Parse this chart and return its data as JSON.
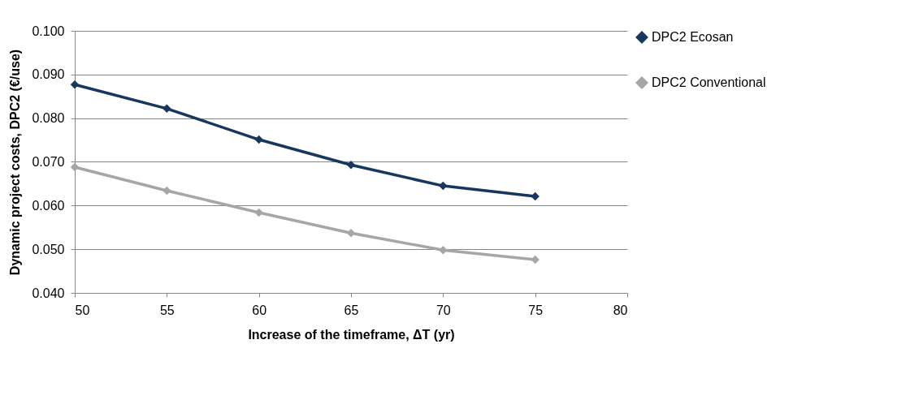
{
  "chart_data": {
    "type": "line",
    "xlabel": "Increase of the timeframe, ΔT (yr)",
    "ylabel": "Dynamic project costs,\nDPC2 (€/use)",
    "x": [
      50,
      55,
      60,
      65,
      70,
      75
    ],
    "series": [
      {
        "name": "DPC2 Ecosan",
        "color": "#17375e",
        "values": [
          0.0877,
          0.0822,
          0.0751,
          0.0693,
          0.0645,
          0.0621
        ]
      },
      {
        "name": "DPC2 Conventional",
        "color": "#a6a6a6",
        "values": [
          0.0688,
          0.0634,
          0.0584,
          0.0537,
          0.0498,
          0.0476
        ]
      }
    ],
    "xlim": [
      50,
      80
    ],
    "xticks": [
      50,
      55,
      60,
      65,
      70,
      75,
      80
    ],
    "ylim": [
      0.04,
      0.1
    ],
    "yticks": [
      {
        "value": 0.04,
        "label": "0.040"
      },
      {
        "value": 0.05,
        "label": "0.050"
      },
      {
        "value": 0.06,
        "label": "0.060"
      },
      {
        "value": 0.07,
        "label": "0.070"
      },
      {
        "value": 0.08,
        "label": "0.080"
      },
      {
        "value": 0.09,
        "label": "0.090"
      },
      {
        "value": 0.1,
        "label": "0.100"
      }
    ],
    "grid": "y",
    "legend": "right",
    "marker": "diamond",
    "line_style": "solid"
  }
}
